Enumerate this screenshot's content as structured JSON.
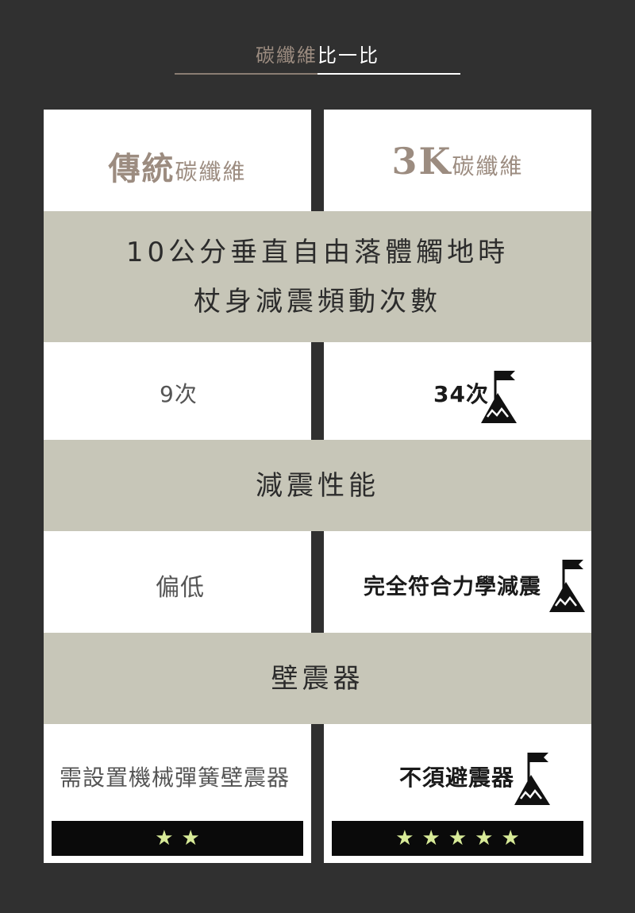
{
  "header": {
    "title_part1": "碳纖維",
    "title_part2": "比一比"
  },
  "columns": {
    "left": {
      "title_big": "傳統",
      "title_small": "碳纖維"
    },
    "right": {
      "title_big": "3K",
      "title_small": "碳纖維"
    }
  },
  "rows": [
    {
      "heading_line1": "10公分垂直自由落體觸地時",
      "heading_line2": "杖身減震頻動次數",
      "left_value": "9次",
      "right_value": "34次"
    },
    {
      "heading_line1": "減震性能",
      "left_value": "偏低",
      "right_value": "完全符合力學減震"
    },
    {
      "heading_line1": "壁震器",
      "left_value": "需設置機械彈簧壁震器",
      "right_value": "不須避震器"
    }
  ],
  "ratings": {
    "left_stars": 2,
    "right_stars": 5,
    "star_color": "#d8eb98"
  },
  "colors": {
    "background": "#303030",
    "band": "#c7c6b8",
    "accent_title": "#9c8c80"
  },
  "icons": {
    "winner_icon": "mountain-flag-icon",
    "rating_icon": "star-icon"
  }
}
